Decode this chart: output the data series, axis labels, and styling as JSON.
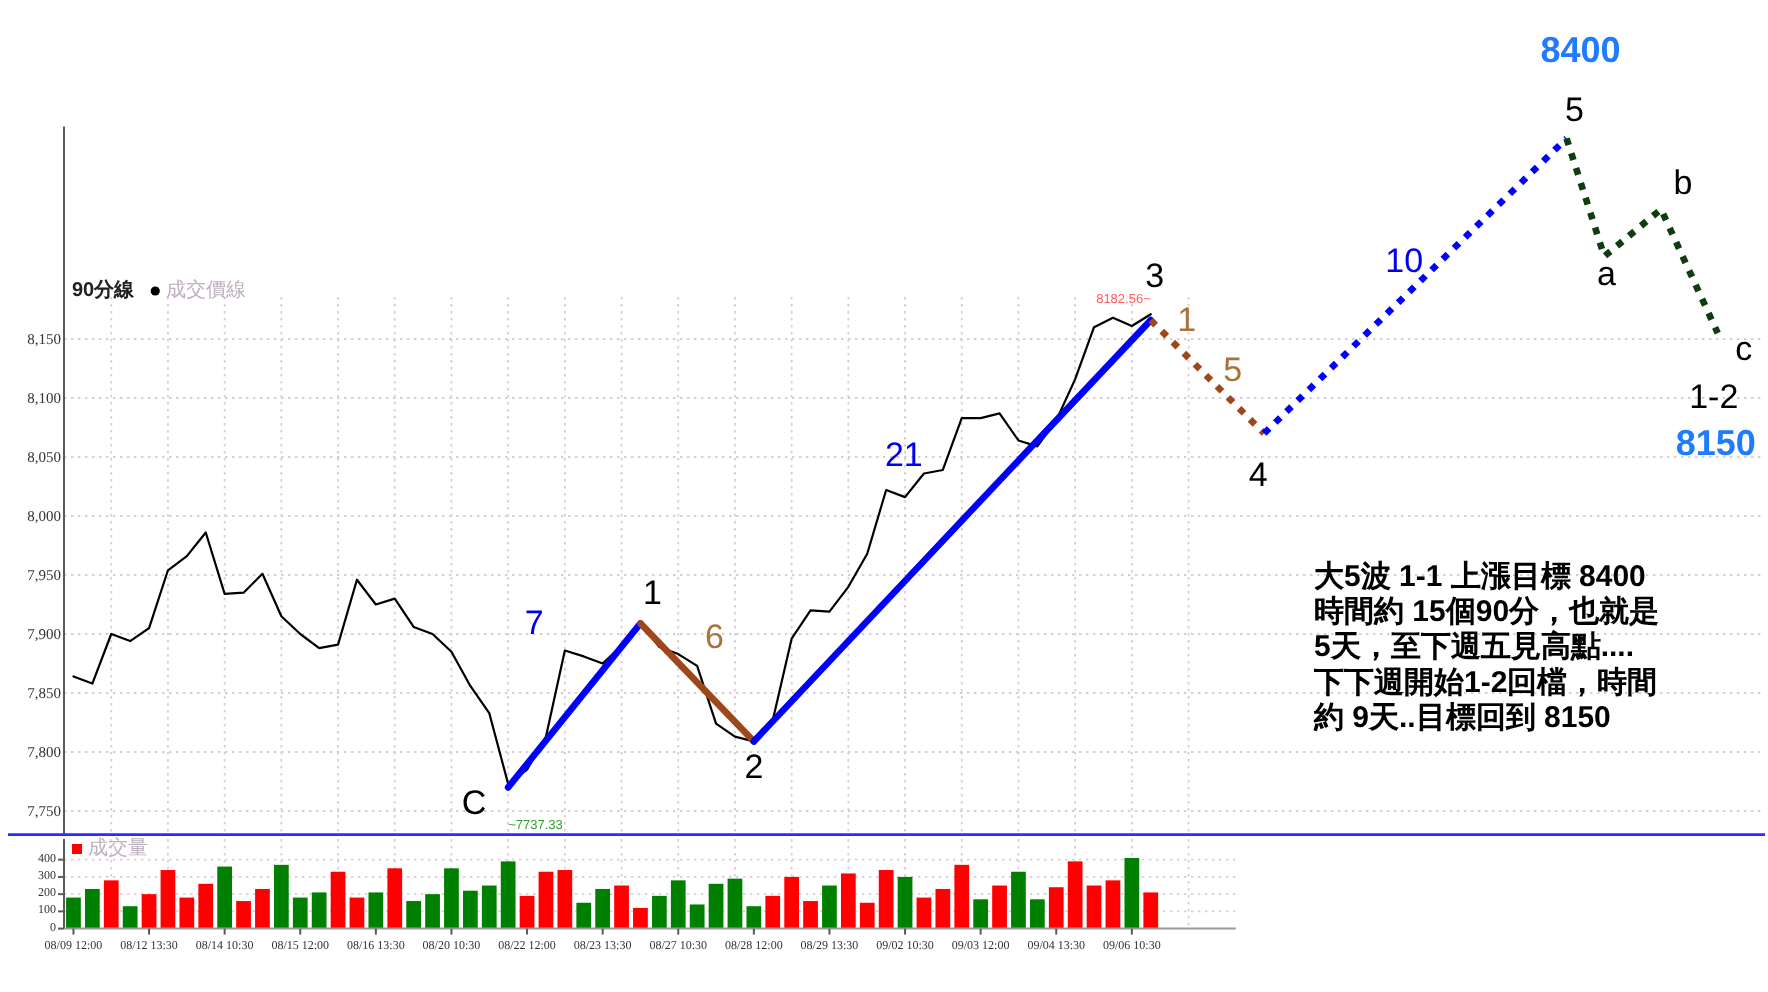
{
  "chart_data": [
    {
      "type": "line",
      "title": "90分線",
      "categories": [
        null,
        null,
        null,
        null,
        null,
        null,
        null,
        null,
        null,
        null,
        null,
        null,
        null,
        null,
        null,
        null,
        null,
        null,
        null,
        null,
        null,
        null,
        null,
        null,
        null,
        null,
        null,
        null,
        null,
        null,
        null,
        null,
        null,
        null,
        null,
        null,
        null,
        null,
        null,
        null,
        null,
        null,
        null,
        null,
        null,
        null,
        null,
        null,
        null,
        null,
        null,
        null,
        null,
        null,
        null,
        null,
        null,
        null,
        null,
        null,
        null,
        null,
        null,
        null,
        null,
        null,
        null,
        null,
        null,
        null,
        null,
        null,
        null,
        null,
        null,
        null,
        null,
        null,
        null,
        null,
        null,
        null,
        null,
        null,
        null,
        null,
        null,
        null,
        null,
        null
      ],
      "series": [
        {
          "name": "成交價線",
          "color": "#000000",
          "values": [
            7864,
            7858,
            7900,
            7894,
            7905,
            7954,
            7966,
            7986,
            7934,
            7935,
            7951,
            7915,
            7900,
            7888,
            7891,
            7946,
            7925,
            7930,
            7906,
            7900,
            7885,
            7856,
            7833,
            7773,
            7785,
            7813,
            7886,
            7881,
            7875,
            7890,
            7909,
            7889,
            7883,
            7873,
            7824,
            7813,
            7809,
            7827,
            7896,
            7920,
            7919,
            7940,
            7968,
            8022,
            8016,
            8036,
            8039,
            8083,
            8083,
            8087,
            8064,
            8059,
            8081,
            8116,
            8160,
            8168,
            8161,
            8171,
            null,
            null,
            null,
            null,
            null,
            null,
            null,
            null,
            null,
            null,
            null,
            null,
            null,
            null,
            null,
            null,
            null,
            null,
            null,
            null,
            null,
            null,
            null,
            null,
            null,
            null,
            null,
            null,
            null,
            null,
            null,
            null
          ]
        },
        {
          "type": "line",
          "color": "#0000ff",
          "line_style": "solid",
          "values": [
            null,
            null,
            null,
            null,
            null,
            null,
            null,
            null,
            null,
            null,
            null,
            null,
            null,
            null,
            null,
            null,
            null,
            null,
            null,
            null,
            null,
            null,
            null,
            7770,
            null,
            null,
            null,
            null,
            null,
            null,
            7909,
            null,
            null,
            null,
            null,
            null,
            null,
            null,
            null,
            null,
            null,
            null,
            null,
            null,
            null,
            null,
            null,
            null,
            null,
            null,
            null,
            null,
            null,
            null,
            null,
            null,
            null,
            null,
            null,
            null,
            null,
            null,
            null,
            null,
            null,
            null,
            null,
            null,
            null,
            null,
            null,
            null,
            null,
            null,
            null,
            null,
            null,
            null,
            null,
            null,
            null,
            null,
            null,
            null,
            null,
            null,
            null,
            null,
            null,
            null
          ]
        },
        {
          "type": "line",
          "color": "#a0471a",
          "line_style": "solid",
          "values": [
            null,
            null,
            null,
            null,
            null,
            null,
            null,
            null,
            null,
            null,
            null,
            null,
            null,
            null,
            null,
            null,
            null,
            null,
            null,
            null,
            null,
            null,
            null,
            null,
            null,
            null,
            null,
            null,
            null,
            null,
            7909,
            null,
            null,
            null,
            null,
            null,
            7809,
            null,
            null,
            null,
            null,
            null,
            null,
            null,
            null,
            null,
            null,
            null,
            null,
            null,
            null,
            null,
            null,
            null,
            null,
            null,
            null,
            null,
            null,
            null,
            null,
            null,
            null,
            null,
            null,
            null,
            null,
            null,
            null,
            null,
            null,
            null,
            null,
            null,
            null,
            null,
            null,
            null,
            null,
            null,
            null,
            null,
            null,
            null,
            null,
            null,
            null,
            null,
            null,
            null
          ]
        },
        {
          "type": "line",
          "color": "#0000ff",
          "line_style": "solid",
          "values": [
            null,
            null,
            null,
            null,
            null,
            null,
            null,
            null,
            null,
            null,
            null,
            null,
            null,
            null,
            null,
            null,
            null,
            null,
            null,
            null,
            null,
            null,
            null,
            null,
            null,
            null,
            null,
            null,
            null,
            null,
            null,
            null,
            null,
            null,
            null,
            null,
            7809,
            null,
            null,
            null,
            null,
            null,
            null,
            null,
            null,
            null,
            null,
            null,
            null,
            null,
            null,
            null,
            null,
            null,
            null,
            null,
            null,
            8166,
            null,
            null,
            null,
            null,
            null,
            null,
            null,
            null,
            null,
            null,
            null,
            null,
            null,
            null,
            null,
            null,
            null,
            null,
            null,
            null,
            null,
            null,
            null,
            null,
            null,
            null,
            null,
            null,
            null,
            null,
            null,
            null
          ]
        },
        {
          "type": "line",
          "color": "#a0471a",
          "line_style": "dotted",
          "values": [
            null,
            null,
            null,
            null,
            null,
            null,
            null,
            null,
            null,
            null,
            null,
            null,
            null,
            null,
            null,
            null,
            null,
            null,
            null,
            null,
            null,
            null,
            null,
            null,
            null,
            null,
            null,
            null,
            null,
            null,
            null,
            null,
            null,
            null,
            null,
            null,
            null,
            null,
            null,
            null,
            null,
            null,
            null,
            null,
            null,
            null,
            null,
            null,
            null,
            null,
            null,
            null,
            null,
            null,
            null,
            null,
            null,
            8166,
            null,
            null,
            null,
            null,
            null,
            8070,
            null,
            null,
            null,
            null,
            null,
            null,
            null,
            null,
            null,
            null,
            null,
            null,
            null,
            null,
            null,
            null,
            null,
            null,
            null,
            null,
            null,
            null,
            null,
            null,
            null,
            null
          ]
        },
        {
          "type": "line",
          "color": "#0000ff",
          "line_style": "dotted",
          "values": [
            null,
            null,
            null,
            null,
            null,
            null,
            null,
            null,
            null,
            null,
            null,
            null,
            null,
            null,
            null,
            null,
            null,
            null,
            null,
            null,
            null,
            null,
            null,
            null,
            null,
            null,
            null,
            null,
            null,
            null,
            null,
            null,
            null,
            null,
            null,
            null,
            null,
            null,
            null,
            null,
            null,
            null,
            null,
            null,
            null,
            null,
            null,
            null,
            null,
            null,
            null,
            null,
            null,
            null,
            null,
            null,
            null,
            null,
            null,
            null,
            null,
            null,
            null,
            8070,
            null,
            null,
            null,
            null,
            null,
            null,
            null,
            null,
            null,
            null,
            null,
            null,
            null,
            null,
            null,
            8320,
            null,
            null,
            null,
            null,
            null,
            null,
            null,
            null,
            null,
            null
          ]
        },
        {
          "type": "line",
          "color": "#0f3d0f",
          "line_style": "dotted",
          "values": [
            null,
            null,
            null,
            null,
            null,
            null,
            null,
            null,
            null,
            null,
            null,
            null,
            null,
            null,
            null,
            null,
            null,
            null,
            null,
            null,
            null,
            null,
            null,
            null,
            null,
            null,
            null,
            null,
            null,
            null,
            null,
            null,
            null,
            null,
            null,
            null,
            null,
            null,
            null,
            null,
            null,
            null,
            null,
            null,
            null,
            null,
            null,
            null,
            null,
            null,
            null,
            null,
            null,
            null,
            null,
            null,
            null,
            null,
            null,
            null,
            null,
            null,
            null,
            null,
            null,
            null,
            null,
            null,
            null,
            null,
            null,
            null,
            null,
            null,
            null,
            null,
            null,
            null,
            null,
            8320,
            null,
            8220,
            null,
            null,
            8260,
            null,
            null,
            8155,
            null,
            null
          ]
        }
      ],
      "ylim": [
        7730,
        8330
      ],
      "yticks": [
        {
          "value": 7750,
          "label": "7,750"
        },
        {
          "value": 7800,
          "label": "7,800"
        },
        {
          "value": 7850,
          "label": "7,850"
        },
        {
          "value": 7900,
          "label": "7,900"
        },
        {
          "value": 7950,
          "label": "7,950"
        },
        {
          "value": 8000,
          "label": "8,000"
        },
        {
          "value": 8050,
          "label": "8,050"
        },
        {
          "value": 8100,
          "label": "8,100"
        },
        {
          "value": 8150,
          "label": "8,150"
        }
      ],
      "grid": true,
      "legend": "top left",
      "annotations": [
        "C",
        "7",
        {
          "text": "1",
          "y": 7909
        },
        "6",
        {
          "text": "2",
          "y": 7809
        },
        "21",
        "3",
        "1",
        "5",
        {
          "text": "4",
          "y": 8070
        },
        "10",
        "5",
        "8400",
        "a",
        "b",
        "c",
        "1-2",
        "8150",
        "8182.56~",
        "~7737.33",
        "大5波 1-1 上漲目標 8400",
        "時間約 15個90分，也就是",
        "5天，至下週五見高點....",
        "下下週開始1-2回檔，時間",
        "約 9天..目標回到 8150"
      ]
    },
    {
      "type": "bar",
      "categories": [
        "08/09 12:00",
        null,
        null,
        null,
        "08/12 13:30",
        null,
        null,
        null,
        "08/14 10:30",
        null,
        null,
        null,
        "08/15 12:00",
        null,
        null,
        null,
        "08/16 13:30",
        null,
        null,
        null,
        "08/20 10:30",
        null,
        null,
        null,
        "08/22 12:00",
        null,
        null,
        null,
        "08/23 13:30",
        null,
        null,
        null,
        "08/27 10:30",
        null,
        null,
        null,
        "08/28 12:00",
        null,
        null,
        null,
        "08/29 13:30",
        null,
        null,
        null,
        "09/02 10:30",
        null,
        null,
        null,
        "09/03 12:00",
        null,
        null,
        null,
        "09/04 13:30",
        null,
        null,
        null,
        "09/06 10:30",
        null,
        null,
        null,
        null,
        null
      ],
      "series": [
        {
          "name": "成交量",
          "color": "#ff0000",
          "values": [
            180,
            230,
            280,
            130,
            200,
            340,
            180,
            260,
            360,
            160,
            230,
            370,
            180,
            210,
            330,
            180,
            210,
            350,
            160,
            200,
            350,
            220,
            250,
            390,
            190,
            330,
            340,
            150,
            230,
            250,
            120,
            190,
            280,
            140,
            260,
            290,
            130,
            190,
            300,
            160,
            250,
            320,
            150,
            340,
            300,
            180,
            230,
            370,
            170,
            250,
            330,
            170,
            240,
            390,
            250,
            280,
            410,
            210,
            null,
            null,
            null,
            null
          ],
          "colors": [
            "#008000",
            "#008000",
            "#ff0000",
            "#008000",
            "#ff0000",
            "#ff0000",
            "#ff0000",
            "#ff0000",
            "#008000",
            "#ff0000",
            "#ff0000",
            "#008000",
            "#008000",
            "#008000",
            "#ff0000",
            "#ff0000",
            "#008000",
            "#ff0000",
            "#008000",
            "#008000",
            "#008000",
            "#008000",
            "#008000",
            "#008000",
            "#ff0000",
            "#ff0000",
            "#ff0000",
            "#008000",
            "#008000",
            "#ff0000",
            "#ff0000",
            "#008000",
            "#008000",
            "#008000",
            "#008000",
            "#008000",
            "#008000",
            "#ff0000",
            "#ff0000",
            "#ff0000",
            "#008000",
            "#ff0000",
            "#ff0000",
            "#ff0000",
            "#008000",
            "#ff0000",
            "#ff0000",
            "#ff0000",
            "#008000",
            "#ff0000",
            "#008000",
            "#008000",
            "#ff0000",
            "#ff0000",
            "#ff0000",
            "#ff0000",
            "#008000",
            "#ff0000",
            null,
            null,
            null,
            null
          ]
        }
      ],
      "ylim": [
        0,
        520
      ],
      "yticks": [
        0,
        100,
        200,
        300,
        400
      ],
      "grid": true,
      "legend": "top left"
    }
  ]
}
